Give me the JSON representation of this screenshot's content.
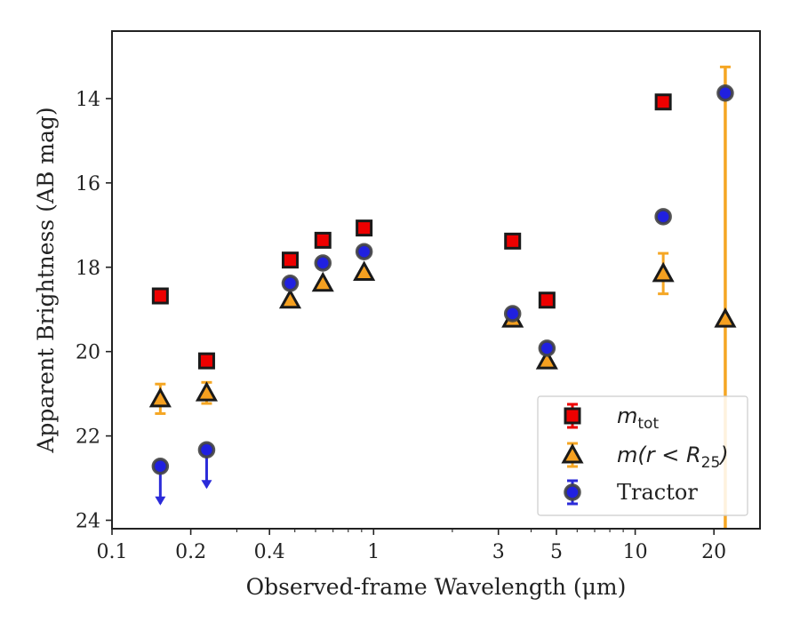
{
  "chart_data": {
    "type": "scatter",
    "xlabel": "Observed-frame Wavelength (μm)",
    "ylabel": "Apparent Brightness (AB mag)",
    "x_scale": "log",
    "xlim": [
      0.1,
      30
    ],
    "ylim": [
      24.2,
      12.4
    ],
    "y_inverted": true,
    "x_ticks": [
      {
        "value": 0.1,
        "label": "0.1"
      },
      {
        "value": 0.2,
        "label": "0.2"
      },
      {
        "value": 0.4,
        "label": "0.4"
      },
      {
        "value": 1,
        "label": "1"
      },
      {
        "value": 3,
        "label": "3"
      },
      {
        "value": 5,
        "label": "5"
      },
      {
        "value": 10,
        "label": "10"
      },
      {
        "value": 20,
        "label": "20"
      }
    ],
    "y_ticks": [
      {
        "value": 14,
        "label": "14"
      },
      {
        "value": 16,
        "label": "16"
      },
      {
        "value": 18,
        "label": "18"
      },
      {
        "value": 20,
        "label": "20"
      },
      {
        "value": 22,
        "label": "22"
      },
      {
        "value": 24,
        "label": "24"
      }
    ],
    "grid": false,
    "legend_position": "lower-right",
    "series": [
      {
        "name": "m_tot",
        "legend_main": "m",
        "legend_sub": "tot",
        "marker": "square",
        "fill": "#ee0000",
        "edge": "#1a1a1a",
        "errcolor": "#ee0000",
        "points": [
          {
            "x": 0.153,
            "y": 18.68
          },
          {
            "x": 0.23,
            "y": 20.22
          },
          {
            "x": 0.48,
            "y": 17.83
          },
          {
            "x": 0.64,
            "y": 17.36
          },
          {
            "x": 0.92,
            "y": 17.07
          },
          {
            "x": 3.4,
            "y": 17.38
          },
          {
            "x": 4.6,
            "y": 18.78
          },
          {
            "x": 12.8,
            "y": 14.08
          }
        ]
      },
      {
        "name": "m(r < R_25)",
        "legend_main": "m(r < R",
        "legend_sub": "25",
        "legend_close": ")",
        "marker": "triangle",
        "fill": "#f5a020",
        "edge": "#1a1a1a",
        "errcolor": "#f5a623",
        "points": [
          {
            "x": 0.153,
            "y": 21.12,
            "err": 0.35
          },
          {
            "x": 0.23,
            "y": 20.98,
            "err": 0.25
          },
          {
            "x": 0.48,
            "y": 18.78
          },
          {
            "x": 0.64,
            "y": 18.38
          },
          {
            "x": 0.92,
            "y": 18.12
          },
          {
            "x": 3.4,
            "y": 19.23
          },
          {
            "x": 4.6,
            "y": 20.22
          },
          {
            "x": 12.8,
            "y": 18.15,
            "err": 0.48
          },
          {
            "x": 22.1,
            "y": 19.23
          }
        ]
      },
      {
        "name": "Tractor",
        "legend_main": "Tractor",
        "marker": "circle",
        "fill": "#2020e0",
        "edge": "#444444",
        "errcolor": "#2b2bd9",
        "points": [
          {
            "x": 0.153,
            "y": 22.72,
            "upper_limit": true
          },
          {
            "x": 0.23,
            "y": 22.33,
            "upper_limit": true
          },
          {
            "x": 0.48,
            "y": 18.38
          },
          {
            "x": 0.64,
            "y": 17.9
          },
          {
            "x": 0.92,
            "y": 17.63
          },
          {
            "x": 3.4,
            "y": 19.1
          },
          {
            "x": 4.6,
            "y": 19.92
          },
          {
            "x": 12.8,
            "y": 16.8
          },
          {
            "x": 22.1,
            "y": 13.87
          }
        ]
      }
    ],
    "special_error_bars": [
      {
        "x": 22.1,
        "ylow": 13.25,
        "yhigh": 24.2,
        "color": "#f5a623"
      }
    ]
  }
}
